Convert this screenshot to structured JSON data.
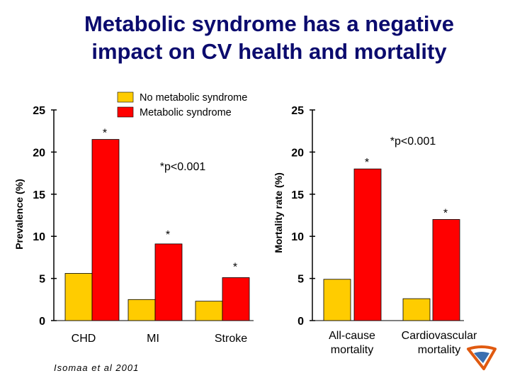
{
  "title_lines": [
    "Metabolic syndrome has a negative",
    "impact on CV health and mortality"
  ],
  "citation": "Isomaa et al 2001",
  "colors": {
    "no_ms": "#FFCC00",
    "ms": "#FF0000",
    "title": "#0B0B6E",
    "logo": "#E05A10"
  },
  "chart_data": [
    {
      "type": "bar",
      "categories": [
        "CHD",
        "MI",
        "Stroke"
      ],
      "series": [
        {
          "name": "No metabolic syndrome",
          "values": [
            5.6,
            2.5,
            2.3
          ]
        },
        {
          "name": "Metabolic syndrome",
          "values": [
            21.5,
            9.1,
            5.1
          ]
        }
      ],
      "ylabel": "Prevalence (%)",
      "ylim": [
        0,
        25
      ],
      "yticks": [
        0,
        5,
        10,
        15,
        20,
        25
      ],
      "significance": [
        "*",
        "*",
        "*"
      ],
      "annotation": "*p<0.001",
      "legend": "top-right"
    },
    {
      "type": "bar",
      "categories": [
        "All-cause mortality",
        "Cardiovascular mortality"
      ],
      "category_lines": [
        [
          "All-cause",
          "mortality"
        ],
        [
          "Cardiovascular",
          "mortality"
        ]
      ],
      "series": [
        {
          "name": "No metabolic syndrome",
          "values": [
            4.9,
            2.6
          ]
        },
        {
          "name": "Metabolic syndrome",
          "values": [
            18.0,
            12.0
          ]
        }
      ],
      "ylabel": "Mortality rate (%)",
      "ylim": [
        0,
        25
      ],
      "yticks": [
        0,
        5,
        10,
        15,
        20,
        25
      ],
      "significance": [
        "*",
        "*"
      ],
      "annotation": "*p<0.001"
    }
  ]
}
